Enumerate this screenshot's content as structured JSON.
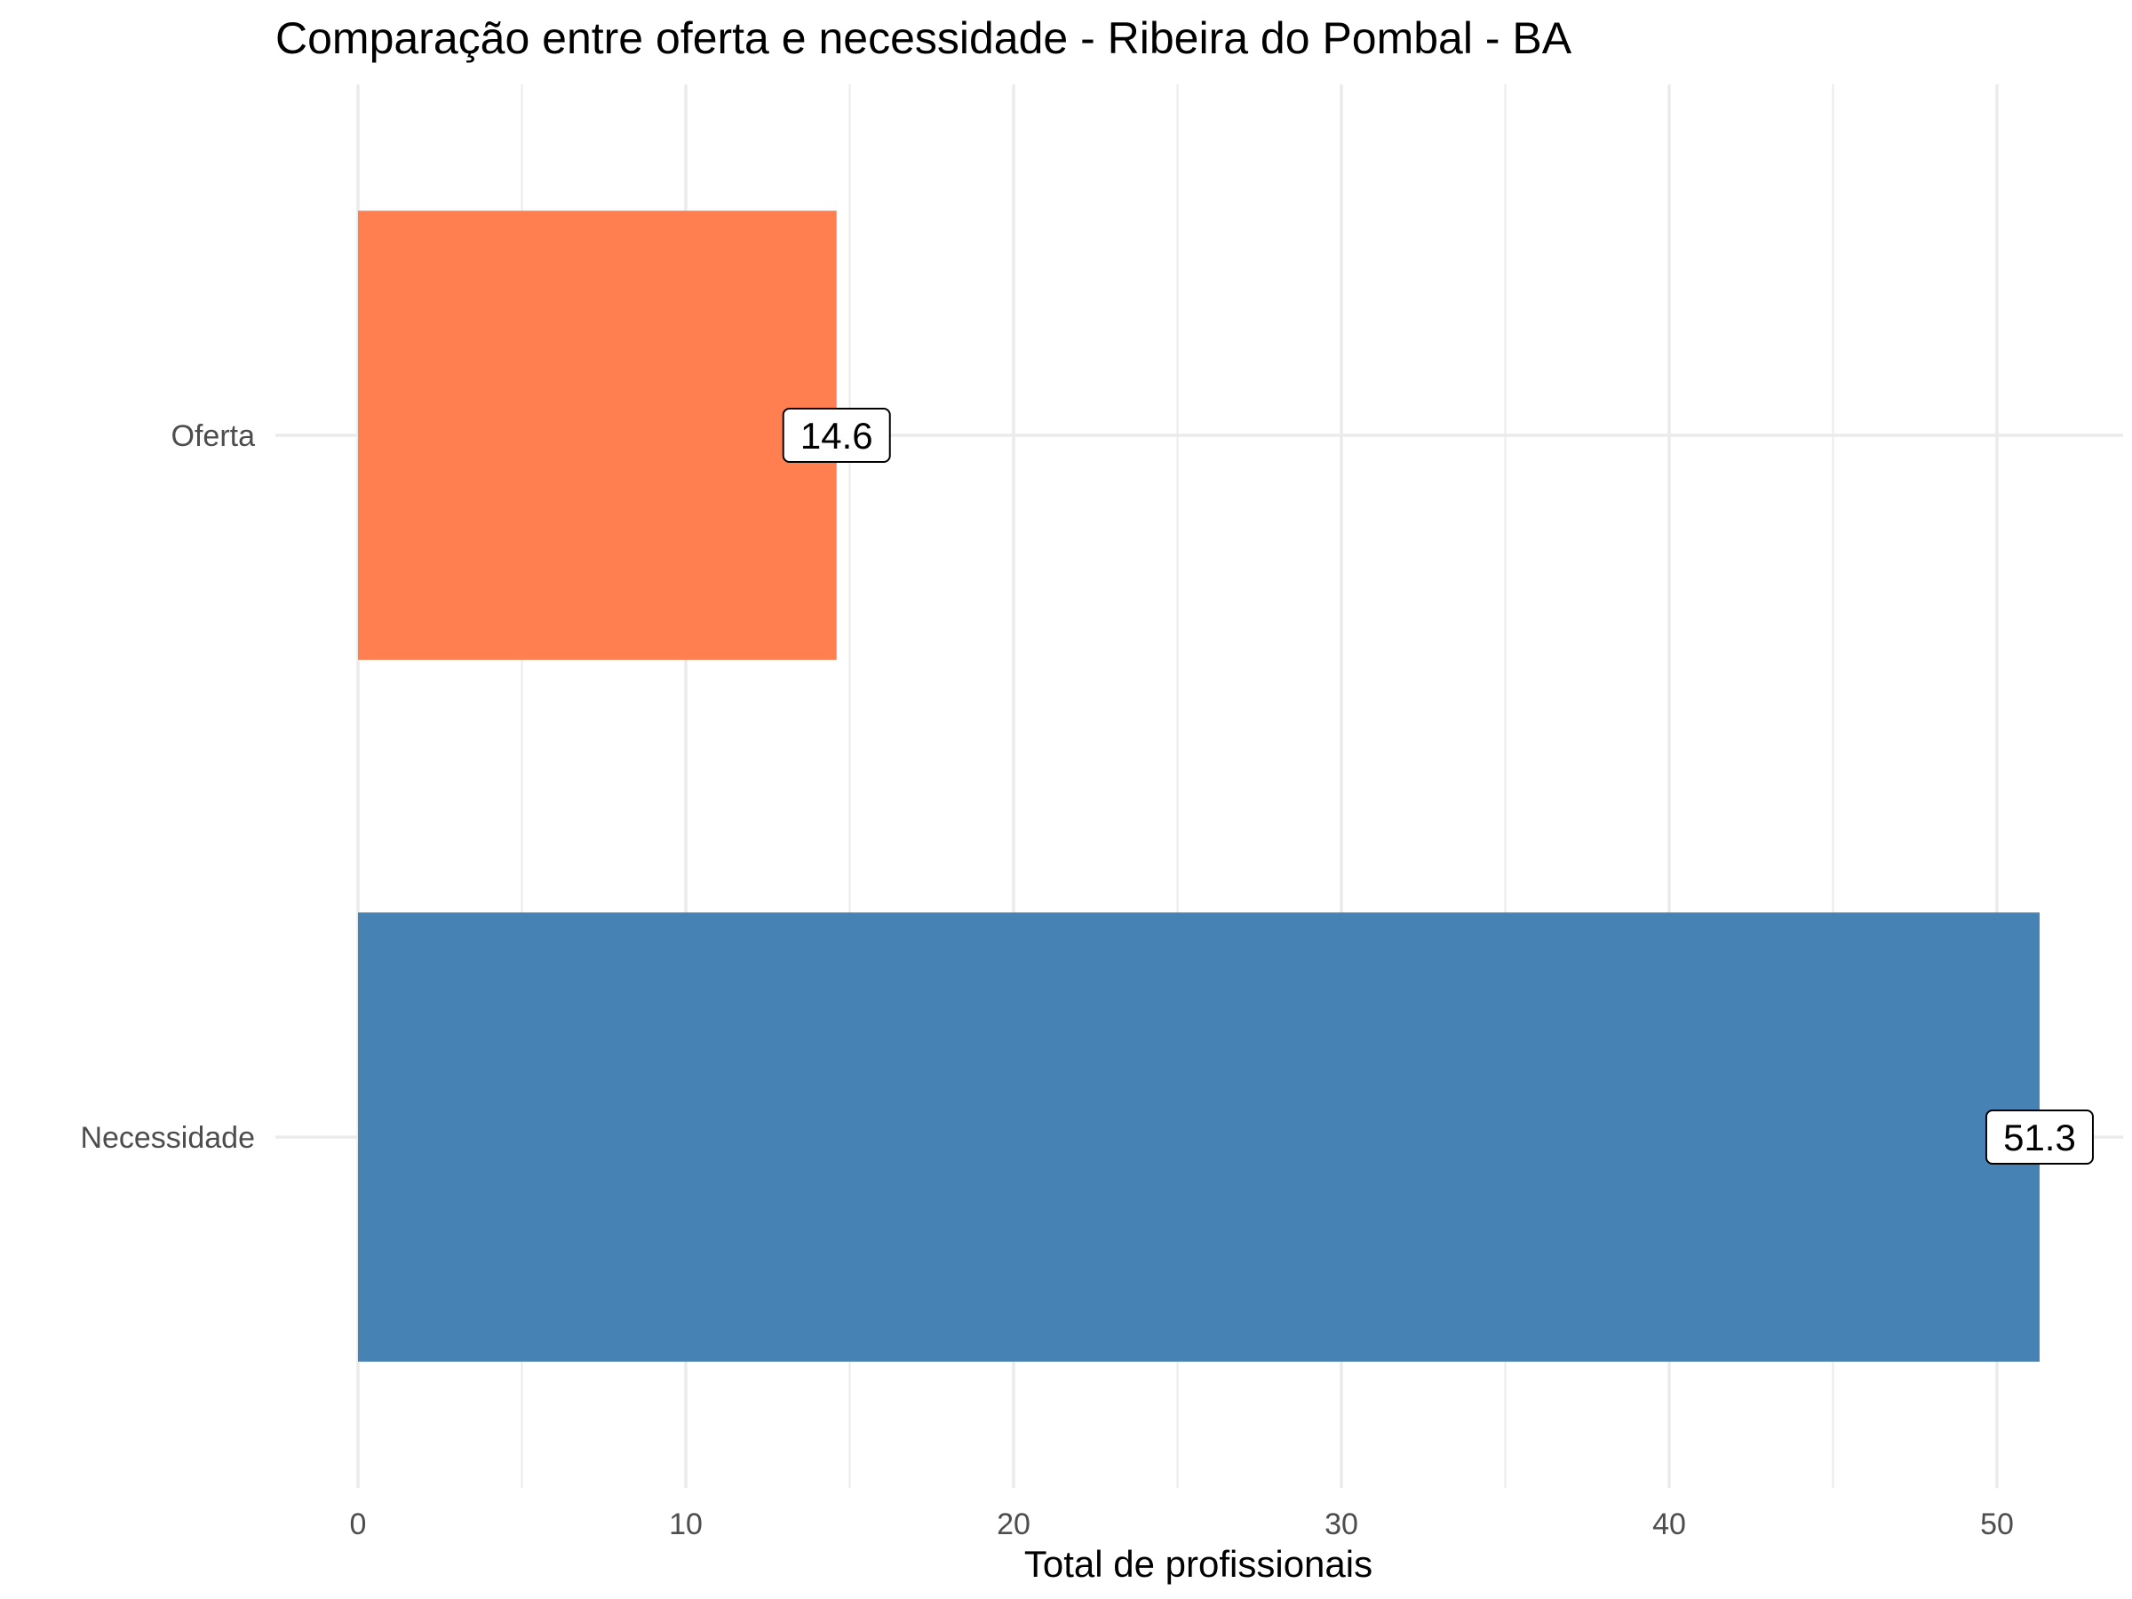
{
  "chart_data": {
    "type": "bar",
    "orientation": "horizontal",
    "title": "Comparação entre oferta e necessidade - Ribeira do Pombal - BA",
    "xlabel": "Total de profissionais",
    "ylabel": "",
    "categories": [
      "Oferta",
      "Necessidade"
    ],
    "values": [
      14.6,
      51.3
    ],
    "data_labels": [
      "14.6",
      "51.3"
    ],
    "colors": [
      "#FF7F50",
      "#4682B4"
    ],
    "xlim": [
      0,
      53.8
    ],
    "ticks": [
      0,
      10,
      20,
      30,
      40,
      50
    ],
    "tick_labels": [
      "0",
      "10",
      "20",
      "30",
      "40",
      "50"
    ],
    "grid": true,
    "legend": "none"
  }
}
